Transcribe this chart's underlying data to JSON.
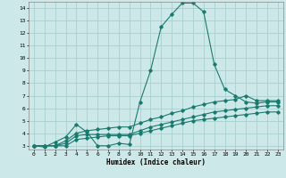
{
  "xlabel": "Humidex (Indice chaleur)",
  "ylabel": "",
  "bg_color": "#cce8e8",
  "line_color": "#1a7a6e",
  "grid_color": "#aacfcf",
  "xlim": [
    -0.5,
    23.5
  ],
  "ylim": [
    2.7,
    14.5
  ],
  "xticks": [
    0,
    1,
    2,
    3,
    4,
    5,
    6,
    7,
    8,
    9,
    10,
    11,
    12,
    13,
    14,
    15,
    16,
    17,
    18,
    19,
    20,
    21,
    22,
    23
  ],
  "yticks": [
    3,
    4,
    5,
    6,
    7,
    8,
    9,
    10,
    11,
    12,
    13,
    14
  ],
  "line1_x": [
    0,
    1,
    2,
    3,
    4,
    5,
    6,
    7,
    8,
    9,
    10,
    11,
    12,
    13,
    14,
    15,
    16,
    17,
    18,
    19,
    20,
    21,
    22,
    23
  ],
  "line1_y": [
    3.0,
    2.9,
    3.3,
    3.7,
    4.7,
    4.1,
    3.0,
    3.0,
    3.2,
    3.1,
    6.5,
    9.0,
    12.5,
    13.5,
    14.4,
    14.4,
    13.7,
    9.5,
    7.5,
    7.0,
    6.5,
    6.4,
    6.5,
    6.5
  ],
  "line2_x": [
    0,
    1,
    2,
    3,
    4,
    5,
    6,
    7,
    8,
    9,
    10,
    11,
    12,
    13,
    14,
    15,
    16,
    17,
    18,
    19,
    20,
    21,
    22,
    23
  ],
  "line2_y": [
    3.0,
    3.0,
    3.0,
    3.4,
    4.0,
    4.2,
    4.3,
    4.4,
    4.5,
    4.5,
    4.8,
    5.1,
    5.3,
    5.6,
    5.8,
    6.1,
    6.3,
    6.5,
    6.6,
    6.7,
    7.0,
    6.6,
    6.6,
    6.6
  ],
  "line3_x": [
    0,
    1,
    2,
    3,
    4,
    5,
    6,
    7,
    8,
    9,
    10,
    11,
    12,
    13,
    14,
    15,
    16,
    17,
    18,
    19,
    20,
    21,
    22,
    23
  ],
  "line3_y": [
    3.0,
    3.0,
    3.0,
    3.2,
    3.8,
    3.9,
    3.9,
    3.9,
    3.9,
    3.9,
    4.2,
    4.5,
    4.7,
    4.9,
    5.1,
    5.3,
    5.5,
    5.7,
    5.8,
    5.9,
    6.0,
    6.1,
    6.2,
    6.2
  ],
  "line4_x": [
    0,
    1,
    2,
    3,
    4,
    5,
    6,
    7,
    8,
    9,
    10,
    11,
    12,
    13,
    14,
    15,
    16,
    17,
    18,
    19,
    20,
    21,
    22,
    23
  ],
  "line4_y": [
    3.0,
    3.0,
    3.0,
    3.0,
    3.5,
    3.6,
    3.7,
    3.8,
    3.8,
    3.8,
    4.0,
    4.2,
    4.4,
    4.6,
    4.8,
    5.0,
    5.1,
    5.2,
    5.3,
    5.4,
    5.5,
    5.6,
    5.7,
    5.7
  ]
}
